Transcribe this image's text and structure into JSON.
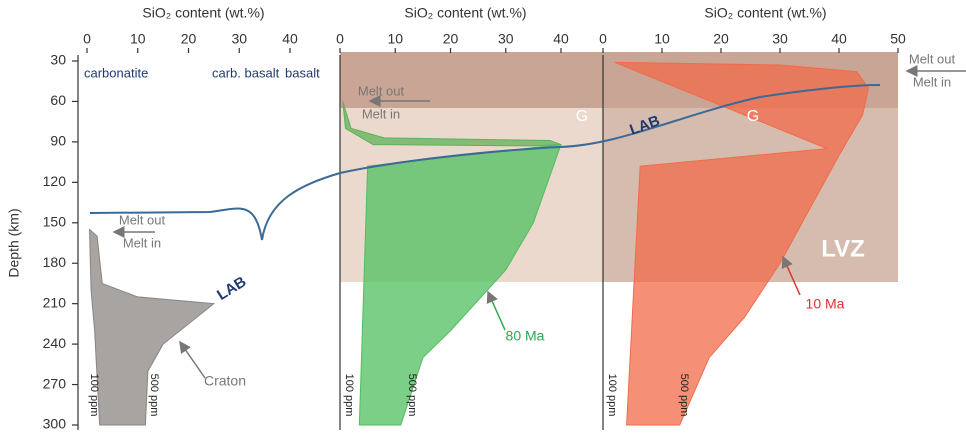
{
  "chart_data": [
    {
      "type": "area",
      "xlabel": "SiO₂ content (wt.%)",
      "ylabel": "Depth (km)",
      "xlim": [
        0,
        40
      ],
      "xticks": [
        0,
        10,
        20,
        30,
        40
      ],
      "ylim": [
        300,
        30
      ],
      "yticks": [
        30,
        60,
        90,
        120,
        150,
        180,
        210,
        240,
        270,
        300
      ],
      "series": [
        {
          "color": "#8a8583",
          "x": [
            0.5,
            2,
            3,
            10,
            25,
            20,
            15,
            12,
            11.5,
            2.5,
            1.5,
            0.8
          ],
          "values": [
            155,
            160,
            195,
            205,
            210,
            225,
            240,
            260,
            300,
            300,
            230,
            200
          ]
        }
      ],
      "annotations": [
        "carbonatite",
        "carb. basalt",
        "basalt",
        "Melt out",
        "Melt in",
        "LAB",
        "Craton",
        "100 ppm",
        "500 ppm"
      ]
    },
    {
      "type": "area",
      "xlabel": "SiO₂ content (wt.%)",
      "xlim": [
        0,
        40
      ],
      "xticks": [
        0,
        10,
        20,
        30,
        40
      ],
      "ylim": [
        300,
        30
      ],
      "series": [
        {
          "color": "#5fb15a",
          "x": [
            0.5,
            2,
            8,
            38,
            40,
            35,
            6,
            1
          ],
          "values": [
            60,
            80,
            87,
            89,
            92,
            93,
            92,
            80
          ]
        },
        {
          "color": "#4fbf5f",
          "x": [
            40,
            5,
            3.5,
            11,
            15,
            20,
            30,
            35
          ],
          "values": [
            92,
            108,
            300,
            300,
            250,
            230,
            185,
            150
          ]
        }
      ],
      "annotations": [
        "Melt out",
        "Melt in",
        "G",
        "LAB",
        "80 Ma",
        "100 ppm",
        "500 ppm"
      ]
    },
    {
      "type": "area",
      "xlabel": "SiO₂ content (wt.%)",
      "xlim": [
        0,
        50
      ],
      "xticks": [
        0,
        10,
        20,
        30,
        40,
        50
      ],
      "ylim": [
        300,
        30
      ],
      "series": [
        {
          "color": "#f26b4a",
          "x": [
            2,
            30,
            43,
            45,
            44,
            40,
            35,
            30,
            24,
            18,
            13,
            4,
            6.3,
            38
          ],
          "values": [
            31,
            33,
            38,
            50,
            70,
            100,
            140,
            180,
            220,
            250,
            300,
            300,
            108,
            95
          ]
        }
      ],
      "annotations": [
        "Melt out",
        "Melt in",
        "G",
        "LVZ",
        "10 Ma",
        "100 ppm",
        "500 ppm"
      ]
    }
  ]
}
